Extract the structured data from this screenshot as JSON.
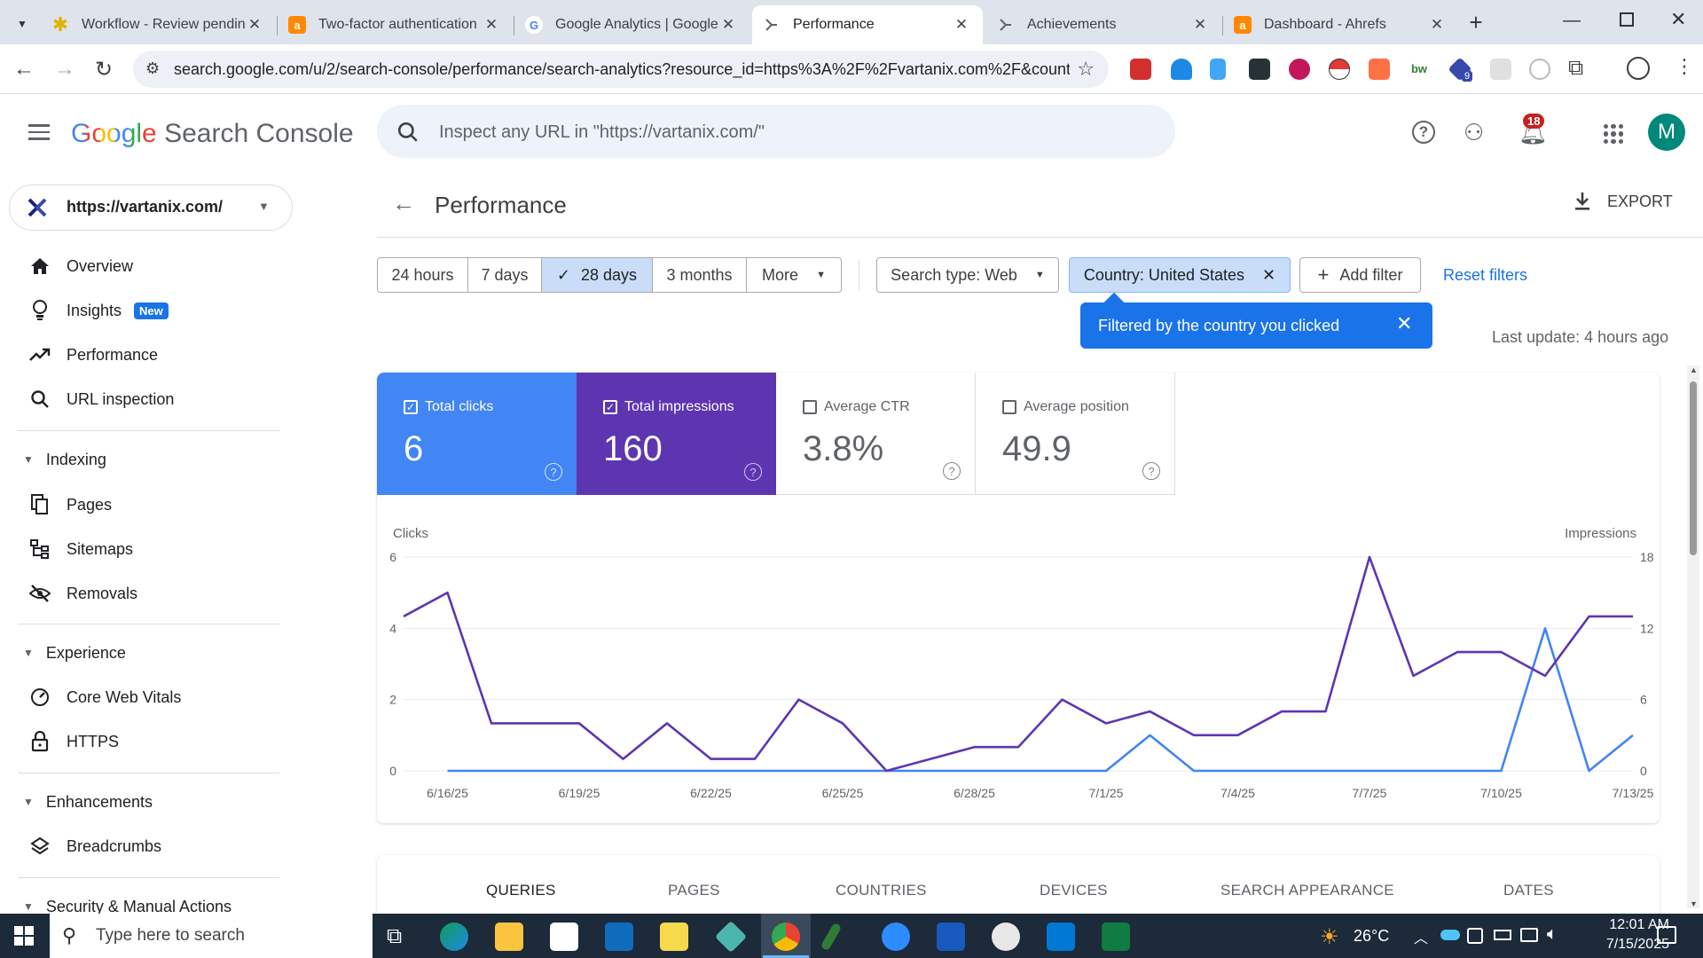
{
  "browser": {
    "tabs": [
      {
        "title": "Workflow - Review pendin",
        "favicon": "asterisk-icon",
        "color": "#2e2e2e"
      },
      {
        "title": "Two-factor authentication",
        "favicon": "ahrefs-icon",
        "color": "#ff8800"
      },
      {
        "title": "Google Analytics | Google",
        "favicon": "google-icon",
        "color": "#4285f4"
      },
      {
        "title": "Performance",
        "favicon": "search-console-icon",
        "color": "#5f6368"
      },
      {
        "title": "Achievements",
        "favicon": "search-console-icon",
        "color": "#5f6368"
      },
      {
        "title": "Dashboard - Ahrefs",
        "favicon": "ahrefs-icon",
        "color": "#ff8800"
      }
    ],
    "active_tab": 3,
    "url": "search.google.com/u/2/search-console/performance/search-analytics?resource_id=https%3A%2F%2Fvartanix.com%2F&country...",
    "extension_badge": "9"
  },
  "gsc": {
    "logo_google": "Google",
    "logo_product": "Search Console",
    "search_placeholder": "Inspect any URL in \"https://vartanix.com/\"",
    "notifications_count": "18",
    "avatar_letter": "M"
  },
  "sidebar": {
    "property": "https://vartanix.com/",
    "items": [
      {
        "label": "Overview",
        "icon": "home-icon"
      },
      {
        "label": "Insights",
        "icon": "lightbulb-icon",
        "badge": "New"
      },
      {
        "label": "Performance",
        "icon": "trending-up-icon"
      },
      {
        "label": "URL inspection",
        "icon": "search-icon"
      }
    ],
    "indexing": {
      "title": "Indexing",
      "items": [
        "Pages",
        "Sitemaps",
        "Removals"
      ]
    },
    "experience": {
      "title": "Experience",
      "items": [
        "Core Web Vitals",
        "HTTPS"
      ]
    },
    "enhancements": {
      "title": "Enhancements",
      "items": [
        "Breadcrumbs"
      ]
    },
    "security": {
      "title": "Security & Manual Actions"
    }
  },
  "main": {
    "title": "Performance",
    "export_label": "EXPORT",
    "ranges": [
      "24 hours",
      "7 days",
      "28 days",
      "3 months",
      "More"
    ],
    "selected_range": "28 days",
    "search_type": "Search type: Web",
    "country_filter": "Country: United States",
    "add_filter": "Add filter",
    "reset_filters": "Reset filters",
    "tooltip": "Filtered by the country you clicked",
    "last_update": "Last update: 4 hours ago",
    "metrics": [
      {
        "label": "Total clicks",
        "value": "6",
        "checked": true,
        "color": "#4285f4"
      },
      {
        "label": "Total impressions",
        "value": "160",
        "checked": true,
        "color": "#5e35b1"
      },
      {
        "label": "Average CTR",
        "value": "3.8%",
        "checked": false,
        "color": "#ffffff"
      },
      {
        "label": "Average position",
        "value": "49.9",
        "checked": false,
        "color": "#ffffff"
      }
    ],
    "bottom_tabs": [
      "QUERIES",
      "PAGES",
      "COUNTRIES",
      "DEVICES",
      "SEARCH APPEARANCE",
      "DATES"
    ]
  },
  "chart_data": {
    "type": "line",
    "title": "",
    "ylabel_left": "Clicks",
    "ylabel_right": "Impressions",
    "ylim_left": [
      0,
      6
    ],
    "ylim_right": [
      0,
      18
    ],
    "yticks_left": [
      "0",
      "2",
      "4",
      "6"
    ],
    "yticks_right": [
      "0",
      "6",
      "12",
      "18"
    ],
    "x": [
      "6/15/25",
      "6/16/25",
      "6/17/25",
      "6/18/25",
      "6/19/25",
      "6/20/25",
      "6/21/25",
      "6/22/25",
      "6/23/25",
      "6/24/25",
      "6/25/25",
      "6/26/25",
      "6/27/25",
      "6/28/25",
      "6/29/25",
      "6/30/25",
      "7/1/25",
      "7/2/25",
      "7/3/25",
      "7/4/25",
      "7/5/25",
      "7/6/25",
      "7/7/25",
      "7/8/25",
      "7/9/25",
      "7/10/25",
      "7/11/25",
      "7/12/25",
      "7/13/25"
    ],
    "xtick_labels": [
      "6/16/25",
      "6/19/25",
      "6/22/25",
      "6/25/25",
      "6/28/25",
      "7/1/25",
      "7/4/25",
      "7/7/25",
      "7/10/25",
      "7/13/25"
    ],
    "series": [
      {
        "name": "Clicks",
        "axis": "left",
        "color": "#4285f4",
        "values": [
          0,
          0,
          0,
          0,
          0,
          0,
          0,
          0,
          0,
          0,
          0,
          0,
          0,
          0,
          0,
          0,
          0,
          1,
          0,
          0,
          0,
          0,
          0,
          0,
          0,
          0,
          4,
          0,
          1
        ]
      },
      {
        "name": "Impressions",
        "axis": "right",
        "color": "#5e35b1",
        "values": [
          13,
          15,
          4,
          4,
          4,
          1,
          4,
          1,
          1,
          6,
          4,
          0,
          1,
          2,
          2,
          6,
          4,
          5,
          3,
          3,
          5,
          5,
          18,
          8,
          10,
          10,
          8,
          13,
          13
        ]
      }
    ],
    "grid": true
  },
  "taskbar": {
    "search_placeholder": "Type here to search",
    "weather": "26°C",
    "time": "12:01 AM",
    "date": "7/15/2025"
  }
}
